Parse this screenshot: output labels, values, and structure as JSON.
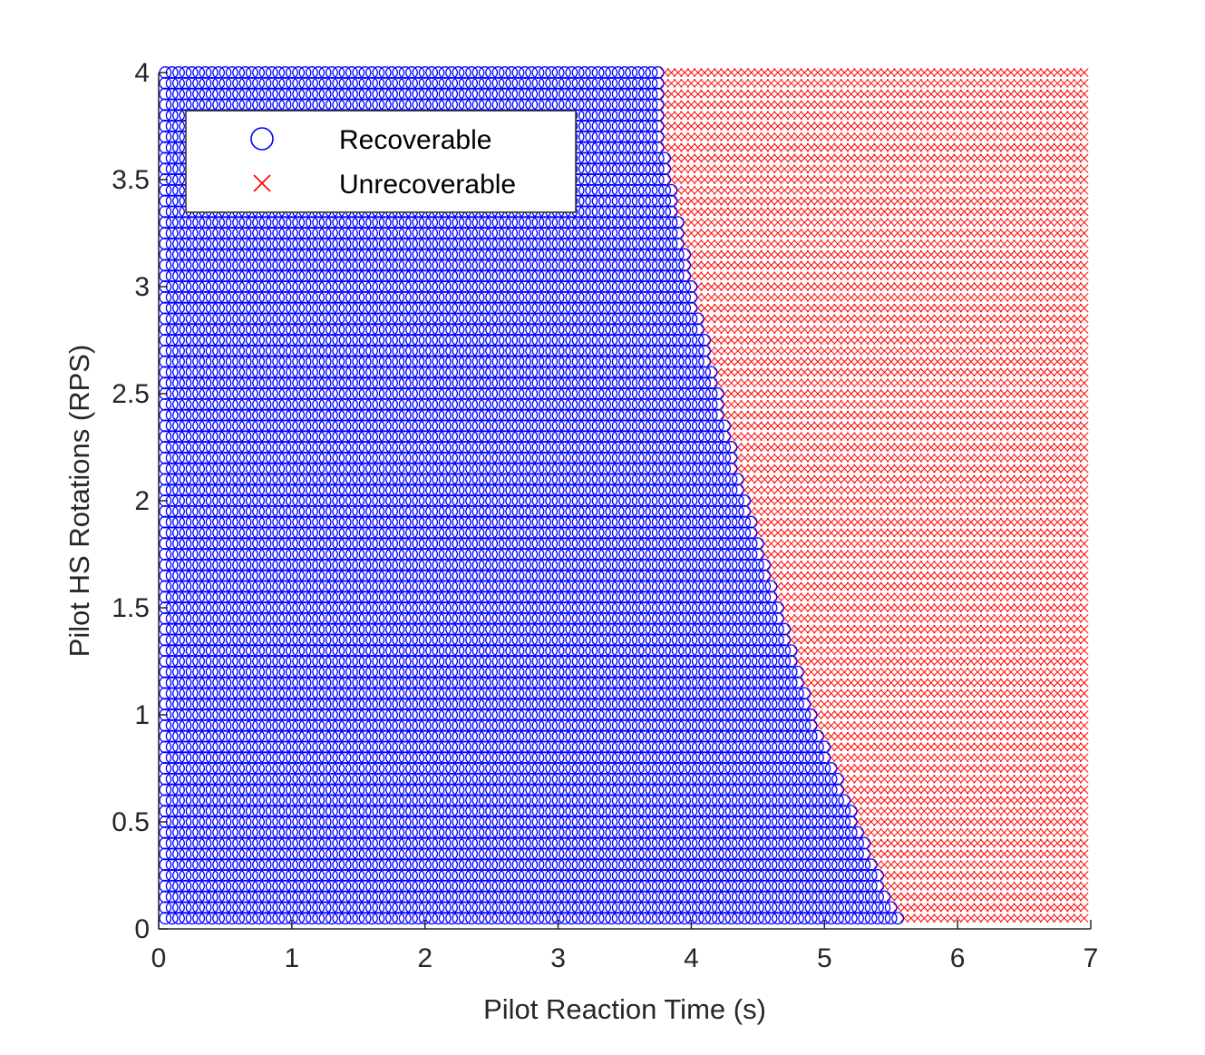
{
  "chart_data": {
    "type": "scatter",
    "title": "",
    "xlabel": "Pilot Reaction Time (s)",
    "ylabel": "Pilot HS Rotations (RPS)",
    "xlim": [
      0,
      7
    ],
    "ylim": [
      0,
      4
    ],
    "xticks": [
      "0",
      "1",
      "2",
      "3",
      "4",
      "5",
      "6",
      "7"
    ],
    "yticks": [
      "0",
      "0.5",
      "1",
      "1.5",
      "2",
      "2.5",
      "3",
      "3.5",
      "4"
    ],
    "grid": false,
    "legend_position": "top-left",
    "grid_x": {
      "start": 0.05,
      "end": 6.95,
      "step": 0.05
    },
    "grid_y": {
      "start": 0.05,
      "end": 4.0,
      "step": 0.05
    },
    "boundary": {
      "description": "Largest recoverable reaction time per rotation rate (piecewise linear); points with reaction time above the boundary are unrecoverable",
      "rps": [
        0.05,
        1.0,
        2.0,
        3.0,
        3.75,
        4.0
      ],
      "reaction_time": [
        5.55,
        4.9,
        4.4,
        4.0,
        3.75,
        3.75
      ]
    },
    "series": [
      {
        "name": "Recoverable",
        "marker": "circle",
        "color": "#0000ff"
      },
      {
        "name": "Unrecoverable",
        "marker": "x",
        "color": "#ff0000"
      }
    ]
  }
}
